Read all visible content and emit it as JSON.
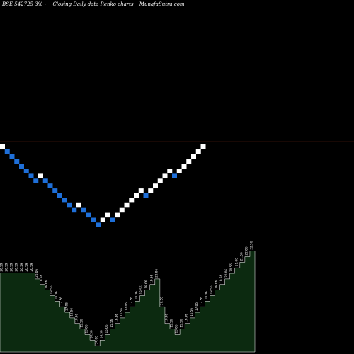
{
  "header": {
    "symbol": "BSE 542725 3%~",
    "chart_kind": "Closing Daily data  Renko  charts",
    "site": "MunafaSutra.com"
  },
  "colors": {
    "background": "#000000",
    "up_brick": "#ffffff",
    "down_brick": "#1e6fd9",
    "ref_line": "#c0441c",
    "volume_fill": "#0c2a10",
    "volume_stroke": "#ffffff"
  },
  "chart_data": [
    {
      "type": "renko",
      "title": "",
      "xlabel": "",
      "ylabel": "",
      "reference_lines": [
        1,
        2
      ],
      "bricks": [
        {
          "level": 0,
          "dir": "up"
        },
        {
          "level": -1,
          "dir": "down"
        },
        {
          "level": -2,
          "dir": "down"
        },
        {
          "level": -3,
          "dir": "down"
        },
        {
          "level": -4,
          "dir": "down"
        },
        {
          "level": -5,
          "dir": "down"
        },
        {
          "level": -6,
          "dir": "down"
        },
        {
          "level": -7,
          "dir": "down"
        },
        {
          "level": -6,
          "dir": "up"
        },
        {
          "level": -7,
          "dir": "down"
        },
        {
          "level": -8,
          "dir": "down"
        },
        {
          "level": -9,
          "dir": "down"
        },
        {
          "level": -10,
          "dir": "down"
        },
        {
          "level": -11,
          "dir": "down"
        },
        {
          "level": -12,
          "dir": "down"
        },
        {
          "level": -13,
          "dir": "down"
        },
        {
          "level": -12,
          "dir": "up"
        },
        {
          "level": -13,
          "dir": "down"
        },
        {
          "level": -14,
          "dir": "down"
        },
        {
          "level": -15,
          "dir": "down"
        },
        {
          "level": -16,
          "dir": "down"
        },
        {
          "level": -15,
          "dir": "up"
        },
        {
          "level": -14,
          "dir": "up"
        },
        {
          "level": -15,
          "dir": "down"
        },
        {
          "level": -14,
          "dir": "up"
        },
        {
          "level": -13,
          "dir": "up"
        },
        {
          "level": -12,
          "dir": "up"
        },
        {
          "level": -11,
          "dir": "up"
        },
        {
          "level": -10,
          "dir": "up"
        },
        {
          "level": -9,
          "dir": "up"
        },
        {
          "level": -10,
          "dir": "down"
        },
        {
          "level": -9,
          "dir": "up"
        },
        {
          "level": -8,
          "dir": "up"
        },
        {
          "level": -7,
          "dir": "up"
        },
        {
          "level": -6,
          "dir": "up"
        },
        {
          "level": -5,
          "dir": "up"
        },
        {
          "level": -6,
          "dir": "down"
        },
        {
          "level": -5,
          "dir": "up"
        },
        {
          "level": -4,
          "dir": "up"
        },
        {
          "level": -3,
          "dir": "up"
        },
        {
          "level": -2,
          "dir": "up"
        },
        {
          "level": -1,
          "dir": "up"
        },
        {
          "level": 0,
          "dir": "up"
        }
      ]
    },
    {
      "type": "area",
      "title": "",
      "xlabel": "",
      "ylabel": "",
      "series": [
        {
          "values": [
            20.59,
            20.59,
            20.59,
            20.59,
            20.59,
            20.59,
            20.59,
            20.06,
            19.56,
            19.06,
            18.56,
            18.06,
            17.56,
            17.06,
            16.56,
            16.06,
            15.56,
            15.06,
            14.56,
            14.06,
            14.56,
            15.06,
            15.56,
            16.06,
            16.56,
            17.06,
            17.56,
            18.06,
            18.56,
            19.06,
            19.56,
            20.06,
            17.56,
            16.06,
            15.56,
            15.06,
            15.56,
            16.06,
            16.56,
            17.06,
            17.56,
            18.06,
            18.56,
            19.06,
            19.56,
            20.06,
            20.56,
            21.06,
            21.56,
            22.06,
            22.56
          ],
          "labels": [
            "20.59",
            "20.59",
            "20.59",
            "20.59",
            "20.59",
            "20.59",
            "20.59",
            "20.06",
            "19.56",
            "19.06",
            "18.56",
            "18.06",
            "17.56",
            "17.06",
            "16.56",
            "16.06",
            "15.56",
            "15.06",
            "14.56",
            "14.06",
            "14.56",
            "15.06",
            "15.56",
            "16.06",
            "16.56",
            "17.06",
            "17.56",
            "18.06",
            "18.56",
            "19.06",
            "19.56",
            "20.06",
            "17.56",
            "16.06",
            "15.56",
            "15.06",
            "15.56",
            "16.06",
            "16.56",
            "17.06",
            "17.56",
            "18.06",
            "18.56",
            "19.06",
            "19.56",
            "20.06",
            "20.56",
            "21.06",
            "21.56",
            "22.06",
            "22.56"
          ]
        }
      ]
    }
  ]
}
